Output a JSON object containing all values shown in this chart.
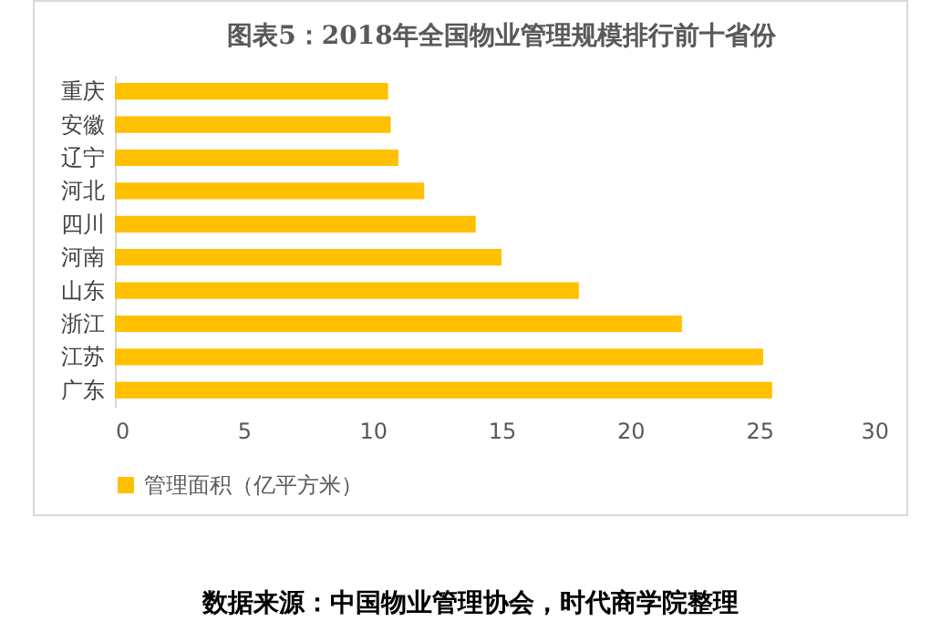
{
  "chart_data": {
    "type": "bar",
    "orientation": "horizontal",
    "title": "图表5：2018年全国物业管理规模排行前十省份",
    "categories": [
      "重庆",
      "安徽",
      "辽宁",
      "河北",
      "四川",
      "河南",
      "山东",
      "浙江",
      "江苏",
      "广东"
    ],
    "series": [
      {
        "name": "管理面积（亿平方米）",
        "color": "#ffc000",
        "values": [
          10.6,
          10.7,
          11.0,
          12.0,
          14.0,
          15.0,
          18.0,
          22.0,
          25.15,
          25.5
        ]
      }
    ],
    "xlim": [
      0,
      30
    ],
    "xticks": [
      0,
      5,
      10,
      15,
      20,
      25,
      30
    ],
    "grid": false,
    "legend": "bottom",
    "annotations": [
      "数据来源：中国物业管理协会，时代商学院整理"
    ]
  }
}
